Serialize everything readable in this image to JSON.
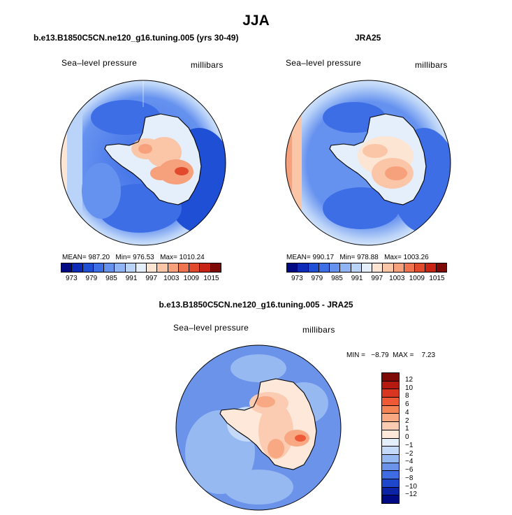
{
  "page_title": "JJA",
  "panels": [
    {
      "title": "b.e13.B1850C5CN.ne120_g16.tuning.005 (yrs 30-49)",
      "variable": "Sea–level pressure",
      "units": "millibars",
      "stats": "MEAN= 987.20   Min= 976.53   Max= 1010.24",
      "stats_values": {
        "mean": 987.2,
        "min": 976.53,
        "max": 1010.24
      }
    },
    {
      "title": "JRA25",
      "variable": "Sea–level pressure",
      "units": "millibars",
      "stats": "MEAN= 990.17   Min= 978.88   Max= 1003.26",
      "stats_values": {
        "mean": 990.17,
        "min": 978.88,
        "max": 1003.26
      }
    },
    {
      "title": "b.e13.B1850C5CN.ne120_g16.tuning.005 - JRA25",
      "variable": "Sea–level pressure",
      "units": "millibars",
      "stats": "MIN =   −8.79  MAX =    7.23",
      "stats_values": {
        "min": -8.79,
        "max": 7.23
      }
    }
  ],
  "colorbar_abs": {
    "orientation": "horizontal",
    "tick_labels": [
      "973",
      "979",
      "985",
      "991",
      "997",
      "1003",
      "1009",
      "1015"
    ],
    "colors": [
      "#000a83",
      "#0e2ab8",
      "#1f4fd4",
      "#3e6ee6",
      "#6692ef",
      "#90b4f4",
      "#bad3f8",
      "#e4effb",
      "#fde5d4",
      "#fbc6a8",
      "#f7a07c",
      "#f0744f",
      "#e24a2e",
      "#c72416",
      "#7d0a06"
    ]
  },
  "colorbar_diff": {
    "orientation": "vertical",
    "tick_labels": [
      "12",
      "10",
      "8",
      "6",
      "4",
      "2",
      "1",
      "0",
      "−1",
      "−2",
      "−4",
      "−6",
      "−8",
      "−10",
      "−12"
    ],
    "colors": [
      "#7d0a06",
      "#b41a0f",
      "#d93622",
      "#ee5a36",
      "#f48356",
      "#f8a983",
      "#fbcbb2",
      "#fde8da",
      "#e4effb",
      "#c4daf8",
      "#97b9f2",
      "#6b93ea",
      "#3f6ce0",
      "#1e47cc",
      "#0c23a6",
      "#000a83"
    ]
  }
}
